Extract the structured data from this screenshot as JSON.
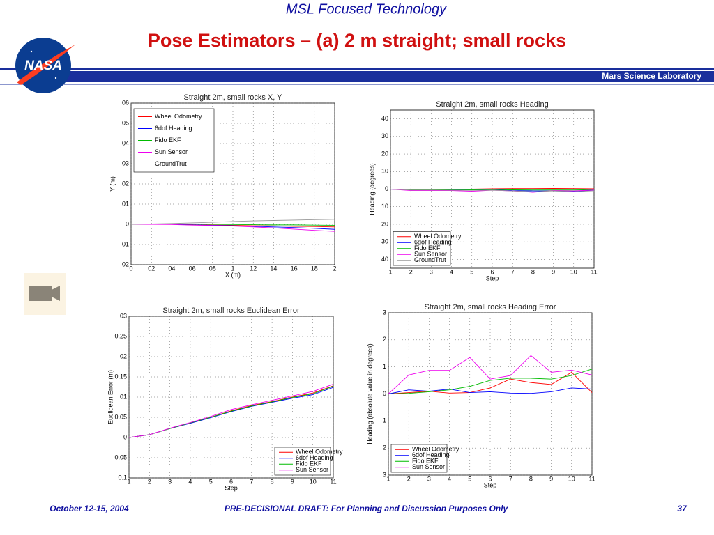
{
  "header": {
    "program": "MSL Focused Technology",
    "title": "Pose Estimators – (a) 2 m straight; small rocks",
    "banner": "Mars Science Laboratory",
    "logo": "NASA"
  },
  "footer": {
    "date": "October 12-15, 2004",
    "notice": "PRE-DECISIONAL DRAFT: For Planning and Discussion Purposes Only",
    "page": "37"
  },
  "chart_data": [
    {
      "type": "line",
      "title": "Straight 2m, small rocks X, Y",
      "x_label": "X (m)",
      "y_label": "Y (m)",
      "grid": true,
      "legend": "upper left",
      "x": [
        0,
        0.2,
        0.4,
        0.6,
        0.8,
        1,
        1.2,
        1.4,
        1.6,
        1.8,
        2
      ],
      "xlim": [
        0,
        2
      ],
      "xticks": [
        0,
        {
          "value": 0.2,
          "label": "02"
        },
        {
          "value": 0.4,
          "label": "04"
        },
        {
          "value": 0.6,
          "label": "06"
        },
        {
          "value": 0.8,
          "label": "08"
        },
        1,
        {
          "value": 1.2,
          "label": "12"
        },
        {
          "value": 1.4,
          "label": "14"
        },
        {
          "value": 1.6,
          "label": "16"
        },
        {
          "value": 1.8,
          "label": "18"
        },
        2
      ],
      "ylim": [
        -0.2,
        0.6
      ],
      "yticks": [
        {
          "value": 0.6,
          "label": "06"
        },
        {
          "value": 0.5,
          "label": "05"
        },
        {
          "value": 0.4,
          "label": "04"
        },
        {
          "value": 0.3,
          "label": "03"
        },
        {
          "value": 0.2,
          "label": "02"
        },
        {
          "value": 0.1,
          "label": "01"
        },
        0,
        {
          "value": -0.1,
          "label": "01"
        },
        {
          "value": -0.2,
          "label": "02"
        }
      ],
      "series": [
        {
          "name": "Wheel Odometry",
          "color": "#ff0000",
          "values": [
            0,
            0,
            0,
            -0.002,
            -0.004,
            -0.005,
            -0.007,
            -0.008,
            -0.01,
            -0.011,
            -0.013
          ]
        },
        {
          "name": "6dof Heading",
          "color": "#0000ff",
          "values": [
            0,
            0,
            0,
            -0.003,
            -0.005,
            -0.007,
            -0.01,
            -0.013,
            -0.016,
            -0.02,
            -0.025
          ]
        },
        {
          "name": "Fido EKF",
          "color": "#00bb00",
          "values": [
            0,
            0,
            0.001,
            0.001,
            0,
            -0.001,
            -0.002,
            -0.003,
            -0.003,
            -0.004,
            -0.005
          ]
        },
        {
          "name": "Sun Sensor",
          "color": "#ee00ee",
          "values": [
            0,
            0,
            -0.001,
            -0.004,
            -0.006,
            -0.009,
            -0.013,
            -0.018,
            -0.024,
            -0.03,
            -0.035
          ]
        },
        {
          "name": "GroundTrut",
          "color": "#999999",
          "values": [
            0,
            0.002,
            0.004,
            0.007,
            0.01,
            0.014,
            0.017,
            0.019,
            0.021,
            0.023,
            0.025
          ]
        }
      ]
    },
    {
      "type": "line",
      "title": "Straight 2m, small rocks Heading",
      "x_label": "Step",
      "y_label": "Heading (degrees)",
      "grid": true,
      "legend": "lower left",
      "x": [
        1,
        2,
        3,
        4,
        5,
        6,
        7,
        8,
        9,
        10,
        11
      ],
      "xlim": [
        1,
        11
      ],
      "xticks": [
        1,
        2,
        3,
        4,
        5,
        6,
        7,
        8,
        9,
        10,
        11
      ],
      "ylim": [
        -45,
        45
      ],
      "yticks": [
        40,
        30,
        20,
        10,
        0,
        {
          "value": -10,
          "label": "10"
        },
        {
          "value": -20,
          "label": "20"
        },
        {
          "value": -30,
          "label": "30"
        },
        {
          "value": -40,
          "label": "40"
        }
      ],
      "series": [
        {
          "name": "Wheel Odometry",
          "color": "#ff0000",
          "values": [
            0,
            0,
            0,
            0,
            0,
            0.2,
            0.3,
            0.3,
            0.4,
            0.3,
            0.2
          ]
        },
        {
          "name": "6dof Heading",
          "color": "#0000ff",
          "values": [
            0,
            -0.4,
            -0.3,
            -0.5,
            -0.5,
            -0.3,
            -0.8,
            -1,
            -1,
            -1.3,
            -0.8
          ]
        },
        {
          "name": "Fido EKF",
          "color": "#00bb00",
          "values": [
            0,
            -0.2,
            -0.3,
            -0.2,
            -0.4,
            -0.2,
            -0.4,
            -0.5,
            -0.5,
            -0.5,
            -0.3
          ]
        },
        {
          "name": "Sun Sensor",
          "color": "#ee00ee",
          "values": [
            0,
            -0.8,
            -0.8,
            -0.8,
            -1.2,
            -0.6,
            -1,
            -1.8,
            -0.8,
            -1,
            -0.5
          ]
        },
        {
          "name": "GroundTrut",
          "color": "#999999",
          "values": [
            0,
            -0.5,
            -0.5,
            -0.6,
            -0.7,
            -0.6,
            -1,
            -1.5,
            -1,
            -1.5,
            -0.9
          ]
        }
      ]
    },
    {
      "type": "line",
      "title": "Straight 2m, small rocks Euclidean Error",
      "x_label": "Step",
      "y_label": "Euclidean Error (m)",
      "grid": true,
      "legend": "lower right",
      "x": [
        1,
        2,
        3,
        4,
        5,
        6,
        7,
        8,
        9,
        10,
        11
      ],
      "xlim": [
        1,
        11
      ],
      "xticks": [
        1,
        2,
        3,
        4,
        5,
        6,
        7,
        8,
        9,
        10,
        11
      ],
      "ylim": [
        -0.1,
        0.3
      ],
      "yticks": [
        {
          "value": 0.3,
          "label": "03"
        },
        0.25,
        {
          "value": 0.2,
          "label": "02"
        },
        0.15,
        {
          "value": 0.1,
          "label": "01"
        },
        0.05,
        0,
        {
          "value": -0.05,
          "label": "0.05"
        },
        {
          "value": -0.1,
          "label": "0.1"
        }
      ],
      "series": [
        {
          "name": "Wheel Odometry",
          "color": "#ff0000",
          "values": [
            0,
            0.007,
            0.022,
            0.036,
            0.05,
            0.066,
            0.079,
            0.089,
            0.1,
            0.11,
            0.128
          ]
        },
        {
          "name": "6dof Heading",
          "color": "#0000ff",
          "values": [
            0,
            0.007,
            0.022,
            0.035,
            0.049,
            0.064,
            0.077,
            0.087,
            0.097,
            0.106,
            0.124
          ]
        },
        {
          "name": "Fido EKF",
          "color": "#00bb00",
          "values": [
            0,
            0.007,
            0.022,
            0.036,
            0.05,
            0.065,
            0.078,
            0.088,
            0.099,
            0.108,
            0.127
          ]
        },
        {
          "name": "Sun Sensor",
          "color": "#ee00ee",
          "values": [
            0,
            0.007,
            0.023,
            0.037,
            0.052,
            0.069,
            0.081,
            0.092,
            0.103,
            0.114,
            0.132
          ]
        }
      ]
    },
    {
      "type": "line",
      "title": "Straight 2m, small rocks Heading Error",
      "x_label": "Step",
      "y_label": "Heading (absolute value in degrees)",
      "grid": true,
      "legend": "lower left",
      "x": [
        1,
        2,
        3,
        4,
        5,
        6,
        7,
        8,
        9,
        10,
        11
      ],
      "xlim": [
        1,
        11
      ],
      "xticks": [
        1,
        2,
        3,
        4,
        5,
        6,
        7,
        8,
        9,
        10,
        11
      ],
      "ylim": [
        -3,
        3
      ],
      "yticks": [
        3,
        2,
        1,
        0,
        {
          "value": -1,
          "label": "1"
        },
        {
          "value": -2,
          "label": "2"
        },
        {
          "value": -3,
          "label": "3"
        }
      ],
      "series": [
        {
          "name": "Wheel Odometry",
          "color": "#ff0000",
          "values": [
            0,
            0.05,
            0.1,
            0.03,
            0.05,
            0.22,
            0.55,
            0.42,
            0.35,
            0.8,
            0.05
          ]
        },
        {
          "name": "6dof Heading",
          "color": "#0000ff",
          "values": [
            0,
            0.15,
            0.1,
            0.18,
            0.05,
            0.08,
            0.03,
            0.02,
            0.08,
            0.22,
            0.18
          ]
        },
        {
          "name": "Fido EKF",
          "color": "#00bb00",
          "values": [
            0,
            0.02,
            0.08,
            0.15,
            0.28,
            0.5,
            0.58,
            0.58,
            0.55,
            0.68,
            0.92
          ]
        },
        {
          "name": "Sun Sensor",
          "color": "#ee00ee",
          "values": [
            0,
            0.7,
            0.87,
            0.87,
            1.35,
            0.55,
            0.68,
            1.42,
            0.8,
            0.88,
            0.7
          ]
        }
      ]
    }
  ]
}
